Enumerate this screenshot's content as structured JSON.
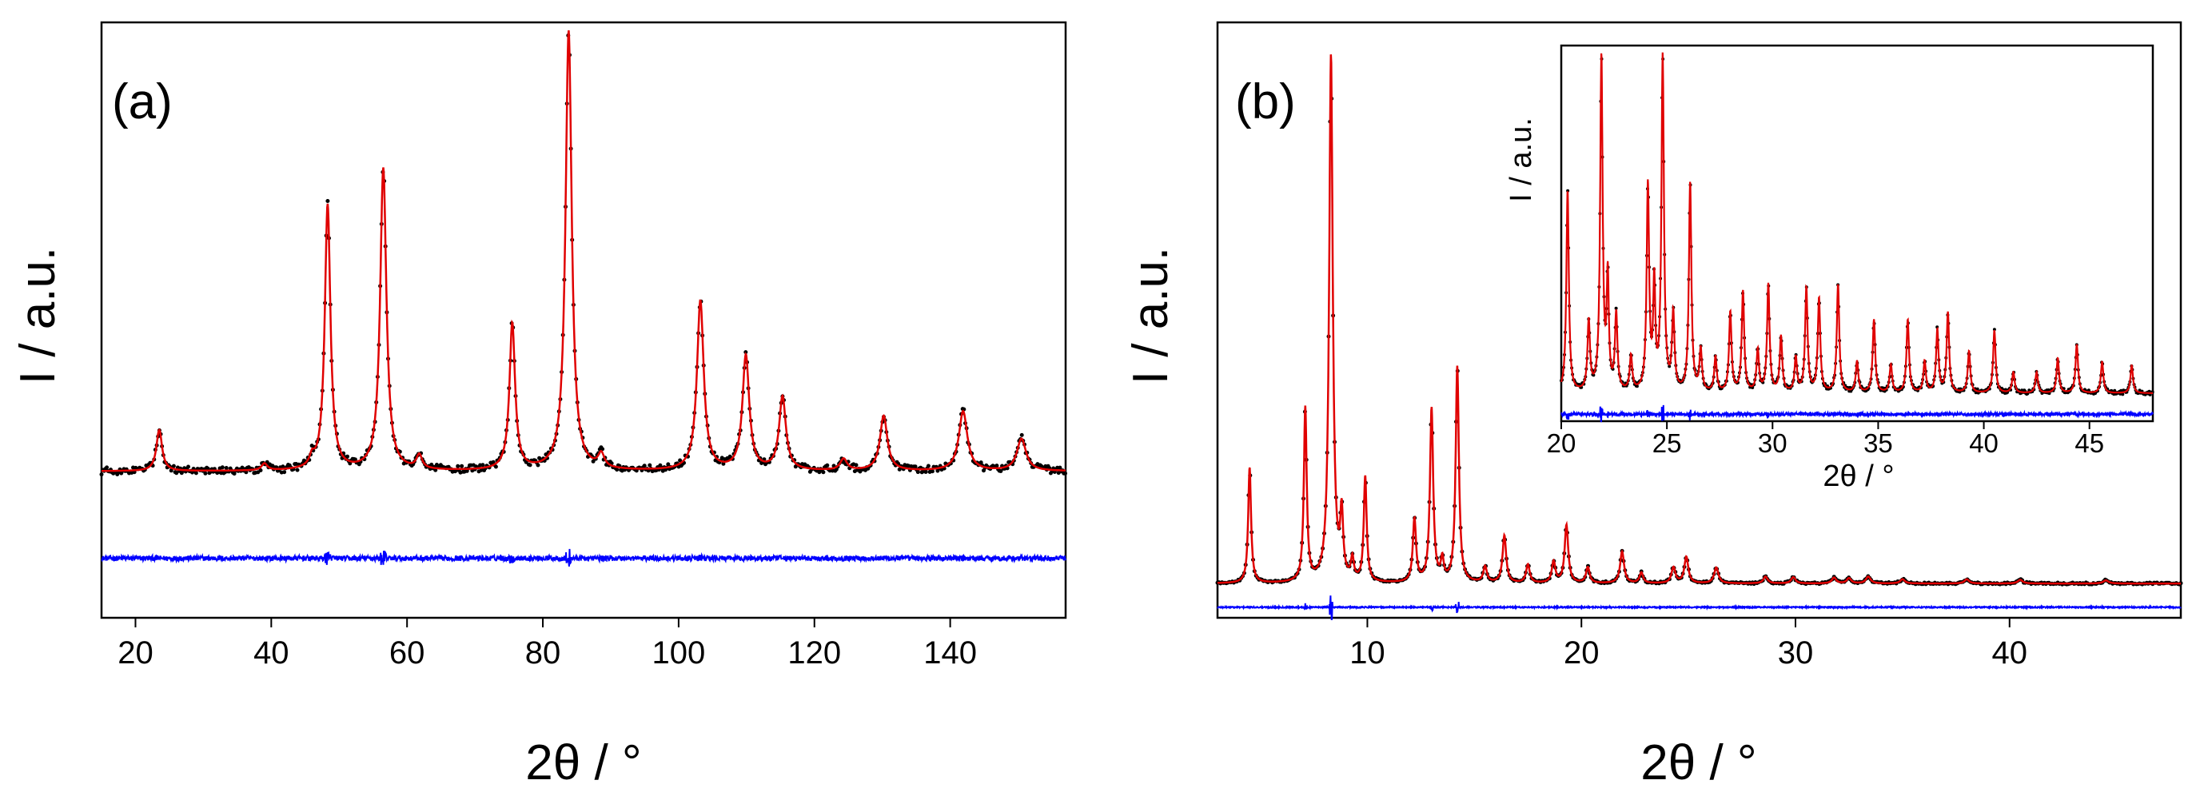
{
  "colors": {
    "observed": "#000000",
    "calculated": "#e00000",
    "difference": "#0000ff",
    "frame": "#000000",
    "background": "#ffffff"
  },
  "chart_data": [
    {
      "type": "line",
      "panel_label": "(a)",
      "title": "",
      "xlabel": "2θ / °",
      "ylabel": "I / a.u.",
      "xlim": [
        15,
        157
      ],
      "ylim": [
        -28,
        102
      ],
      "xticks": [
        20,
        40,
        60,
        80,
        100,
        120,
        140
      ],
      "xtick_labels": [
        "20",
        "40",
        "60",
        "80",
        "100",
        "120",
        "140"
      ],
      "yticks_visible": false,
      "background": 4,
      "difference_offset": -15,
      "series": [
        {
          "name": "observed",
          "style": "markers"
        },
        {
          "name": "calculated",
          "style": "line"
        },
        {
          "name": "difference",
          "style": "line"
        }
      ],
      "peaks": [
        {
          "x": 23.5,
          "h": 9,
          "w": 0.5
        },
        {
          "x": 39.0,
          "h": 1.5,
          "w": 0.5
        },
        {
          "x": 46.0,
          "h": 2,
          "w": 0.4
        },
        {
          "x": 48.3,
          "h": 58,
          "w": 0.5
        },
        {
          "x": 56.5,
          "h": 66,
          "w": 0.55
        },
        {
          "x": 61.8,
          "h": 3,
          "w": 0.5
        },
        {
          "x": 75.5,
          "h": 32,
          "w": 0.5
        },
        {
          "x": 83.8,
          "h": 96,
          "w": 0.55
        },
        {
          "x": 88.6,
          "h": 3,
          "w": 0.55
        },
        {
          "x": 103.2,
          "h": 37,
          "w": 0.6
        },
        {
          "x": 109.9,
          "h": 25,
          "w": 0.6
        },
        {
          "x": 115.3,
          "h": 16,
          "w": 0.6
        },
        {
          "x": 124.3,
          "h": 2.5,
          "w": 0.6
        },
        {
          "x": 130.2,
          "h": 12,
          "w": 0.65
        },
        {
          "x": 141.9,
          "h": 13,
          "w": 0.75
        },
        {
          "x": 150.5,
          "h": 7,
          "w": 0.8
        }
      ]
    },
    {
      "type": "line",
      "panel_label": "(b)",
      "title": "",
      "xlabel": "2θ / °",
      "ylabel": "I / a.u.",
      "xlim": [
        3,
        48
      ],
      "ylim": [
        -6,
        107
      ],
      "xticks": [
        10,
        20,
        30,
        40
      ],
      "xtick_labels": [
        "10",
        "20",
        "30",
        "40"
      ],
      "yticks_visible": false,
      "background": 0.5,
      "difference_offset": -4,
      "series": [
        {
          "name": "observed",
          "style": "markers"
        },
        {
          "name": "calculated",
          "style": "line"
        },
        {
          "name": "difference",
          "style": "line"
        }
      ],
      "peaks": [
        {
          "x": 4.5,
          "h": 22,
          "w": 0.08
        },
        {
          "x": 7.1,
          "h": 33,
          "w": 0.08
        },
        {
          "x": 8.3,
          "h": 100,
          "w": 0.1
        },
        {
          "x": 8.8,
          "h": 12,
          "w": 0.08
        },
        {
          "x": 9.3,
          "h": 4,
          "w": 0.08
        },
        {
          "x": 9.9,
          "h": 20,
          "w": 0.08
        },
        {
          "x": 12.2,
          "h": 12,
          "w": 0.09
        },
        {
          "x": 13.0,
          "h": 33,
          "w": 0.09
        },
        {
          "x": 13.5,
          "h": 4,
          "w": 0.08
        },
        {
          "x": 14.2,
          "h": 41,
          "w": 0.09
        },
        {
          "x": 15.5,
          "h": 3,
          "w": 0.1
        },
        {
          "x": 16.4,
          "h": 9,
          "w": 0.1
        },
        {
          "x": 17.5,
          "h": 3.5,
          "w": 0.1
        },
        {
          "x": 18.7,
          "h": 4,
          "w": 0.1
        },
        {
          "x": 19.3,
          "h": 11,
          "w": 0.1
        },
        {
          "x": 20.3,
          "h": 3,
          "w": 0.1
        },
        {
          "x": 21.9,
          "h": 6,
          "w": 0.11
        },
        {
          "x": 22.8,
          "h": 2,
          "w": 0.1
        },
        {
          "x": 24.3,
          "h": 3,
          "w": 0.11
        },
        {
          "x": 24.9,
          "h": 5,
          "w": 0.11
        },
        {
          "x": 26.3,
          "h": 3,
          "w": 0.12
        },
        {
          "x": 28.6,
          "h": 1.3,
          "w": 0.12
        },
        {
          "x": 29.9,
          "h": 1.2,
          "w": 0.12
        },
        {
          "x": 31.8,
          "h": 1.1,
          "w": 0.12
        },
        {
          "x": 32.5,
          "h": 1,
          "w": 0.12
        },
        {
          "x": 33.4,
          "h": 1.3,
          "w": 0.13
        },
        {
          "x": 35.0,
          "h": 0.8,
          "w": 0.13
        },
        {
          "x": 38.0,
          "h": 0.8,
          "w": 0.13
        },
        {
          "x": 40.5,
          "h": 0.7,
          "w": 0.14
        },
        {
          "x": 44.5,
          "h": 0.6,
          "w": 0.15
        }
      ],
      "inset": {
        "type": "line",
        "xlabel": "2θ / °",
        "ylabel": "I / a.u.",
        "xlim": [
          20,
          48
        ],
        "ylim": [
          -6,
          102
        ],
        "xticks": [
          20,
          25,
          30,
          35,
          40,
          45
        ],
        "xtick_labels": [
          "20",
          "25",
          "30",
          "35",
          "40",
          "45"
        ],
        "yticks_visible": false,
        "background": 2,
        "difference_offset": -4,
        "series": [
          {
            "name": "observed",
            "style": "markers"
          },
          {
            "name": "calculated",
            "style": "line"
          },
          {
            "name": "difference",
            "style": "line"
          }
        ],
        "peaks": [
          {
            "x": 20.3,
            "h": 58,
            "w": 0.07
          },
          {
            "x": 21.3,
            "h": 20,
            "w": 0.07
          },
          {
            "x": 21.9,
            "h": 96,
            "w": 0.07
          },
          {
            "x": 22.2,
            "h": 32,
            "w": 0.06
          },
          {
            "x": 22.6,
            "h": 22,
            "w": 0.07
          },
          {
            "x": 23.3,
            "h": 10,
            "w": 0.07
          },
          {
            "x": 24.1,
            "h": 59,
            "w": 0.07
          },
          {
            "x": 24.4,
            "h": 30,
            "w": 0.06
          },
          {
            "x": 24.8,
            "h": 96,
            "w": 0.07
          },
          {
            "x": 25.3,
            "h": 22,
            "w": 0.07
          },
          {
            "x": 26.1,
            "h": 60,
            "w": 0.07
          },
          {
            "x": 26.6,
            "h": 12,
            "w": 0.07
          },
          {
            "x": 27.3,
            "h": 10,
            "w": 0.07
          },
          {
            "x": 28.0,
            "h": 23,
            "w": 0.07
          },
          {
            "x": 28.6,
            "h": 29,
            "w": 0.07
          },
          {
            "x": 29.3,
            "h": 12,
            "w": 0.07
          },
          {
            "x": 29.8,
            "h": 31,
            "w": 0.07
          },
          {
            "x": 30.4,
            "h": 16,
            "w": 0.07
          },
          {
            "x": 31.1,
            "h": 10,
            "w": 0.07
          },
          {
            "x": 31.6,
            "h": 30,
            "w": 0.07
          },
          {
            "x": 32.2,
            "h": 27,
            "w": 0.07
          },
          {
            "x": 33.1,
            "h": 31,
            "w": 0.07
          },
          {
            "x": 34.0,
            "h": 9,
            "w": 0.07
          },
          {
            "x": 34.8,
            "h": 21,
            "w": 0.07
          },
          {
            "x": 35.6,
            "h": 8,
            "w": 0.07
          },
          {
            "x": 36.4,
            "h": 21,
            "w": 0.07
          },
          {
            "x": 37.2,
            "h": 9,
            "w": 0.07
          },
          {
            "x": 37.8,
            "h": 18,
            "w": 0.07
          },
          {
            "x": 38.3,
            "h": 23,
            "w": 0.07
          },
          {
            "x": 39.3,
            "h": 12,
            "w": 0.07
          },
          {
            "x": 40.5,
            "h": 18,
            "w": 0.07
          },
          {
            "x": 41.4,
            "h": 6,
            "w": 0.07
          },
          {
            "x": 42.5,
            "h": 6,
            "w": 0.07
          },
          {
            "x": 43.5,
            "h": 10,
            "w": 0.07
          },
          {
            "x": 44.4,
            "h": 14,
            "w": 0.07
          },
          {
            "x": 45.6,
            "h": 9,
            "w": 0.07
          },
          {
            "x": 47.0,
            "h": 8,
            "w": 0.07
          }
        ]
      }
    }
  ]
}
